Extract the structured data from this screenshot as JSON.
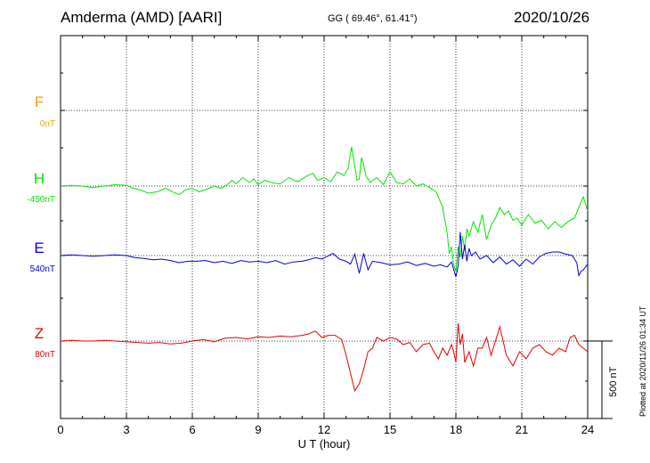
{
  "header": {
    "station": "Amderma (AMD)  [AARI]",
    "coords": "GG ( 69.46°,  61.41°)",
    "date": "2020/10/26"
  },
  "side_note": "Plotted at 2020/11/26 01:34 UT",
  "colors": {
    "F": "#f5a000",
    "H": "#00e600",
    "E": "#0000dd",
    "Z": "#e60000"
  },
  "chart_data": {
    "type": "line",
    "xlabel": "U T (hour)",
    "xlim": [
      0,
      24
    ],
    "x_ticks": [
      0,
      3,
      6,
      9,
      12,
      15,
      18,
      21,
      24
    ],
    "x_tick_labels": [
      "0",
      "3",
      "6",
      "9",
      "12",
      "15",
      "18",
      "21",
      "24"
    ],
    "scale_bar": {
      "value_nT": 500,
      "label": "500 nT"
    },
    "series": [
      {
        "name": "F",
        "baseline_label": "0nT",
        "color": "#f5a000",
        "x": [],
        "y": []
      },
      {
        "name": "H",
        "baseline_label": "-450nT",
        "color": "#00e600",
        "x": [
          0,
          0.5,
          1,
          1.5,
          2,
          2.5,
          3,
          3.3,
          3.6,
          4,
          4.4,
          4.8,
          5.1,
          5.4,
          5.7,
          6,
          6.3,
          6.6,
          7,
          7.3,
          7.6,
          7.8,
          8,
          8.3,
          8.6,
          8.8,
          9,
          9.3,
          9.6,
          10,
          10.4,
          10.8,
          11.2,
          11.5,
          11.7,
          12,
          12.3,
          12.6,
          12.9,
          13.1,
          13.25,
          13.4,
          13.5,
          13.6,
          13.7,
          13.8,
          13.9,
          14.1,
          14.4,
          14.7,
          15,
          15.3,
          15.6,
          15.9,
          16.2,
          16.5,
          16.8,
          17.1,
          17.4,
          17.6,
          17.7,
          17.8,
          17.9,
          18,
          18.1,
          18.2,
          18.3,
          18.4,
          18.5,
          18.6,
          18.8,
          19,
          19.2,
          19.4,
          19.6,
          19.8,
          20,
          20.2,
          20.4,
          20.6,
          20.8,
          21,
          21.3,
          21.6,
          21.9,
          22.2,
          22.5,
          22.8,
          23.1,
          23.4,
          23.6,
          23.8,
          24
        ],
        "y": [
          0,
          1,
          0,
          -2,
          0,
          2,
          1,
          -3,
          -5,
          -10,
          -8,
          -3,
          -8,
          -12,
          -5,
          -3,
          -8,
          -5,
          0,
          -3,
          2,
          8,
          3,
          12,
          5,
          10,
          2,
          8,
          5,
          3,
          12,
          6,
          14,
          18,
          8,
          12,
          6,
          20,
          15,
          25,
          55,
          28,
          8,
          10,
          40,
          30,
          15,
          5,
          12,
          2,
          20,
          5,
          3,
          10,
          0,
          3,
          -2,
          -8,
          -30,
          -65,
          -95,
          -85,
          -110,
          -120,
          -85,
          -100,
          -70,
          -90,
          -60,
          -70,
          -50,
          -65,
          -40,
          -75,
          -55,
          -45,
          -30,
          -40,
          -35,
          -48,
          -45,
          -55,
          -40,
          -52,
          -48,
          -60,
          -50,
          -58,
          -50,
          -45,
          -30,
          -15,
          -35
        ]
      },
      {
        "name": "E",
        "baseline_label": "540nT",
        "color": "#0000dd",
        "x": [
          0,
          0.5,
          1,
          1.5,
          2,
          2.5,
          3,
          3.4,
          3.8,
          4.2,
          4.6,
          5,
          5.4,
          5.8,
          6.2,
          6.6,
          7,
          7.4,
          7.8,
          8.2,
          8.6,
          9,
          9.4,
          9.8,
          10.2,
          10.6,
          11,
          11.3,
          11.6,
          11.9,
          12.1,
          12.4,
          12.7,
          13,
          13.2,
          13.4,
          13.6,
          13.8,
          14,
          14.2,
          14.6,
          15,
          15.4,
          15.8,
          16.2,
          16.6,
          17,
          17.3,
          17.6,
          17.8,
          18,
          18.1,
          18.2,
          18.3,
          18.4,
          18.5,
          18.6,
          18.7,
          18.9,
          19.1,
          19.4,
          19.7,
          20,
          20.3,
          20.6,
          20.9,
          21.2,
          21.5,
          21.8,
          22.1,
          22.4,
          22.7,
          23,
          23.3,
          23.5,
          23.6,
          23.7,
          23.8,
          24
        ],
        "y": [
          0,
          1,
          0,
          -1,
          0,
          1,
          0,
          -3,
          -4,
          -6,
          -5,
          -7,
          -10,
          -8,
          -8,
          -7,
          -10,
          -8,
          -11,
          -7,
          -9,
          -8,
          -10,
          -7,
          -12,
          -9,
          -8,
          -6,
          -3,
          -5,
          -2,
          3,
          -5,
          -8,
          -12,
          2,
          -25,
          3,
          -20,
          -8,
          -10,
          -13,
          -12,
          -9,
          -14,
          -11,
          -15,
          -13,
          -16,
          -9,
          -30,
          -14,
          33,
          -5,
          15,
          -8,
          10,
          0,
          5,
          -5,
          0,
          -10,
          -2,
          -12,
          -6,
          -15,
          -5,
          -12,
          -2,
          3,
          5,
          5,
          2,
          0,
          -10,
          -28,
          -22,
          -20,
          -12
        ]
      },
      {
        "name": "Z",
        "baseline_label": "80nT",
        "color": "#e60000",
        "x": [
          0,
          0.5,
          1,
          1.5,
          2,
          2.5,
          3,
          3.5,
          4,
          4.5,
          5,
          5.5,
          6,
          6.5,
          7,
          7.5,
          8,
          8.5,
          9,
          9.5,
          10,
          10.5,
          11,
          11.3,
          11.6,
          11.9,
          12.2,
          12.5,
          12.8,
          13,
          13.2,
          13.4,
          13.6,
          13.8,
          14,
          14.2,
          14.4,
          14.7,
          15,
          15.3,
          15.6,
          15.9,
          16.2,
          16.5,
          16.8,
          17,
          17.2,
          17.4,
          17.6,
          17.8,
          17.9,
          18,
          18.1,
          18.2,
          18.3,
          18.4,
          18.6,
          18.8,
          19,
          19.2,
          19.4,
          19.6,
          19.8,
          20,
          20.3,
          20.6,
          20.9,
          21.2,
          21.5,
          21.8,
          22.1,
          22.4,
          22.7,
          23,
          23.2,
          23.4,
          23.6,
          23.8,
          24
        ],
        "y": [
          0,
          1,
          0,
          0,
          1,
          0,
          -1,
          -2,
          -3,
          -2,
          -4,
          -3,
          0,
          2,
          -1,
          4,
          5,
          3,
          6,
          5,
          7,
          6,
          8,
          10,
          14,
          5,
          8,
          8,
          2,
          -20,
          -45,
          -70,
          -60,
          -40,
          -15,
          -10,
          5,
          0,
          5,
          3,
          -5,
          -2,
          -15,
          -5,
          -3,
          -15,
          -25,
          -10,
          -20,
          -5,
          -15,
          -30,
          25,
          -5,
          10,
          -30,
          -15,
          -35,
          -10,
          -10,
          5,
          -20,
          0,
          20,
          -20,
          -35,
          -15,
          -25,
          -10,
          -5,
          -15,
          -20,
          -10,
          -15,
          5,
          8,
          -5,
          -10,
          -15
        ]
      }
    ]
  }
}
